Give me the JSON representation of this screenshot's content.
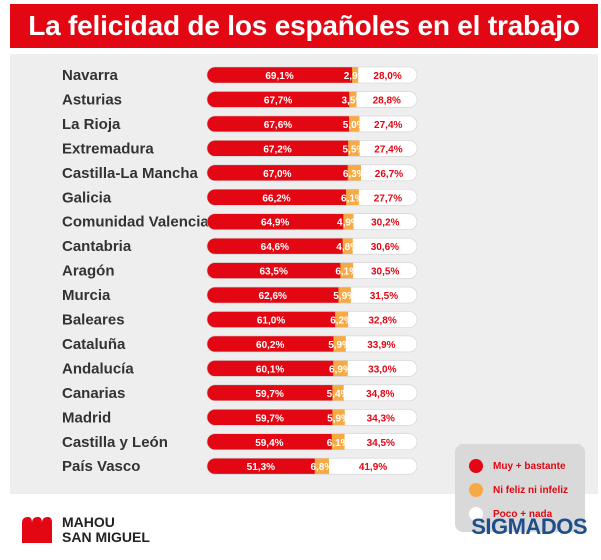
{
  "title": "La felicidad de los españoles en el trabajo",
  "colors": {
    "muy": "#e30613",
    "ni": "#f7a944",
    "poco": "#ffffff",
    "title_bg": "#e30613",
    "panel_bg": "#eeeeee"
  },
  "chart_data": {
    "type": "bar",
    "orientation": "horizontal",
    "stacked": true,
    "categories": [
      "Navarra",
      "Asturias",
      "La Rioja",
      "Extremadura",
      "Castilla-La Mancha",
      "Galicia",
      "Comunidad Valenciana",
      "Cantabria",
      "Aragón",
      "Murcia",
      "Baleares",
      "Cataluña",
      "Andalucía",
      "Canarias",
      "Madrid",
      "Castilla y León",
      "País Vasco"
    ],
    "series": [
      {
        "name": "Muy + bastante",
        "values": [
          69.1,
          67.7,
          67.6,
          67.2,
          67.0,
          66.2,
          64.9,
          64.6,
          63.5,
          62.6,
          61.0,
          60.2,
          60.1,
          59.7,
          59.7,
          59.4,
          51.3
        ],
        "labels": [
          "69,1%",
          "67,7%",
          "67,6%",
          "67,2%",
          "67,0%",
          "66,2%",
          "64,9%",
          "64,6%",
          "63,5%",
          "62,6%",
          "61,0%",
          "60,2%",
          "60,1%",
          "59,7%",
          "59,7%",
          "59,4%",
          "51,3%"
        ]
      },
      {
        "name": "Ni feliz ni infeliz",
        "values": [
          2.9,
          3.5,
          5.0,
          5.5,
          6.3,
          6.1,
          4.9,
          4.8,
          6.1,
          5.9,
          6.2,
          5.9,
          6.9,
          5.4,
          5.9,
          6.1,
          6.8
        ],
        "labels": [
          "2,9%",
          "3,5%",
          "5,0%",
          "5,5%",
          "6,3%",
          "6,1%",
          "4,9%",
          "4,8%",
          "6,1%",
          "5,9%",
          "6,2%",
          "5,9%",
          "6,9%",
          "5,4%",
          "5,9%",
          "6,1%",
          "6,8%"
        ]
      },
      {
        "name": "Poco + nada",
        "values": [
          28.0,
          28.8,
          27.4,
          27.4,
          26.7,
          27.7,
          30.2,
          30.6,
          30.5,
          31.5,
          32.8,
          33.9,
          33.0,
          34.8,
          34.3,
          34.5,
          41.9
        ],
        "labels": [
          "28,0%",
          "28,8%",
          "27,4%",
          "27,4%",
          "26,7%",
          "27,7%",
          "30,2%",
          "30,6%",
          "30,5%",
          "31,5%",
          "32,8%",
          "33,9%",
          "33,0%",
          "34,8%",
          "34,3%",
          "34,5%",
          "41,9%"
        ]
      }
    ],
    "legend": "bottom-right",
    "grid": false
  },
  "legend_items": [
    {
      "label": "Muy + bastante",
      "color": "#e30613"
    },
    {
      "label": "Ni feliz ni infeliz",
      "color": "#f7a944"
    },
    {
      "label": "Poco + nada",
      "color": "#ffffff"
    }
  ],
  "logos": {
    "left_line1": "MAHOU",
    "left_line2": "SAN MIGUEL",
    "right": "SIGMADOS"
  }
}
